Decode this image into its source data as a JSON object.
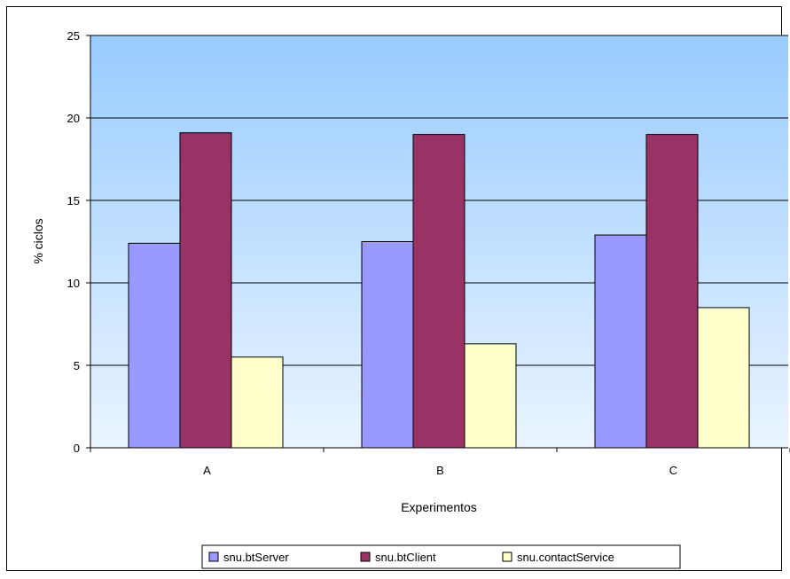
{
  "chart_data": {
    "type": "bar",
    "title": "",
    "xlabel": "Experimentos",
    "ylabel": "% ciclos",
    "ylim": [
      0,
      25
    ],
    "yticks": [
      0,
      5,
      10,
      15,
      20,
      25
    ],
    "categories": [
      "A",
      "B",
      "C"
    ],
    "series": [
      {
        "name": "snu.btServer",
        "color": "#9999ff",
        "values": [
          12.4,
          12.5,
          12.9
        ]
      },
      {
        "name": "snu.btClient",
        "color": "#993366",
        "values": [
          19.1,
          19.0,
          19.0
        ]
      },
      {
        "name": "snu.contactService",
        "color": "#ffffcc",
        "values": [
          5.5,
          6.3,
          8.5
        ]
      }
    ],
    "grid": true,
    "legend_position": "bottom",
    "background_gradient": [
      "#99ccff",
      "#eaf4ff"
    ]
  }
}
